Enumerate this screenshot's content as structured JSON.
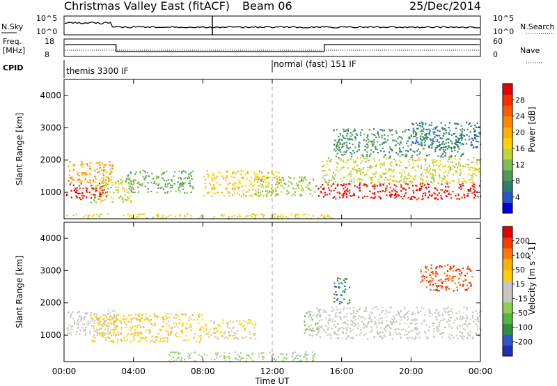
{
  "header": {
    "site": "Christmas Valley East (fitACF)",
    "beam": "Beam 06",
    "date": "25/Dec/2014"
  },
  "top_panels": {
    "nsky_label": "N.Sky",
    "nsky_ticks": [
      "10^5",
      "10^0"
    ],
    "nsearch_label": "N.Search",
    "nsearch_ticks": [
      "10^5",
      "10^0"
    ],
    "freq_label": "Freq.",
    "freq_unit": "[MHz]",
    "freq_ticks": [
      "18",
      "8"
    ],
    "nave_label": "Nave",
    "nave_ticks": [
      "60",
      "0"
    ],
    "cpid_label": "CPID",
    "cpid_modes": [
      {
        "name": "themis 3300 IF",
        "start": 0
      },
      {
        "name": "normal (fast) 151 IF",
        "start": 12
      }
    ]
  },
  "chart_data": [
    {
      "type": "heatmap",
      "title": "Power",
      "xlabel": "Time UT",
      "ylabel": "Slant Range [km]",
      "x_unit": "hours UT",
      "xlim": [
        0,
        24
      ],
      "ylim": [
        180,
        4500
      ],
      "x_ticks": [
        "00:00",
        "04:00",
        "08:00",
        "12:00",
        "16:00",
        "20:00",
        "00:00"
      ],
      "y_ticks": [
        1000,
        2000,
        3000,
        4000
      ],
      "colorbar": {
        "label": "Power [dB]",
        "ticks": [
          "4",
          "8",
          "12",
          "16",
          "20",
          "24",
          "28"
        ],
        "range": [
          0,
          30
        ],
        "colors": [
          "#0000e6",
          "#2555c8",
          "#2f7f6f",
          "#4f9b5a",
          "#7fbf4f",
          "#bcd63c",
          "#ffd200",
          "#ffb000",
          "#ff8800",
          "#ff5a00",
          "#ff2a00",
          "#e60000"
        ]
      },
      "regions": [
        {
          "t0": 0.1,
          "t1": 2.5,
          "r0": 800,
          "r1": 1300,
          "value": 28
        },
        {
          "t0": 0.2,
          "t1": 2.8,
          "r0": 1300,
          "r1": 2000,
          "value": 20
        },
        {
          "t0": 1.5,
          "t1": 4.0,
          "r0": 700,
          "r1": 1500,
          "value": 14
        },
        {
          "t0": 3.5,
          "t1": 7.5,
          "r0": 1000,
          "r1": 1700,
          "value": 10
        },
        {
          "t0": 8.0,
          "t1": 12.5,
          "r0": 900,
          "r1": 1700,
          "value": 17
        },
        {
          "t0": 11.0,
          "t1": 14.5,
          "r0": 900,
          "r1": 1500,
          "value": 12
        },
        {
          "t0": 0.0,
          "t1": 15.5,
          "r0": 200,
          "r1": 350,
          "value": 16
        },
        {
          "t0": 14.6,
          "t1": 24.0,
          "r0": 800,
          "r1": 1300,
          "value": 28
        },
        {
          "t0": 14.8,
          "t1": 24.0,
          "r0": 1300,
          "r1": 2100,
          "value": 14
        },
        {
          "t0": 15.5,
          "t1": 23.0,
          "r0": 2100,
          "r1": 3000,
          "value": 8
        },
        {
          "t0": 20.0,
          "t1": 24.0,
          "r0": 2400,
          "r1": 3200,
          "value": 6
        }
      ]
    },
    {
      "type": "heatmap",
      "title": "Velocity",
      "xlabel": "Time UT",
      "ylabel": "Slant Range [km]",
      "x_unit": "hours UT",
      "xlim": [
        0,
        24
      ],
      "ylim": [
        180,
        4500
      ],
      "x_ticks": [
        "00:00",
        "04:00",
        "08:00",
        "12:00",
        "16:00",
        "20:00",
        "00:00"
      ],
      "y_ticks": [
        1000,
        2000,
        3000,
        4000
      ],
      "colorbar": {
        "label": "Velocity [m s^-1]",
        "ticks": [
          "200",
          "100",
          "50",
          "15",
          "-15",
          "-50",
          "-100",
          "-200"
        ],
        "range": [
          -250,
          250
        ],
        "colors": [
          "#1f2fb8",
          "#2f58c8",
          "#2f8f3f",
          "#4fb83f",
          "#8fd04f",
          "#c8c8c0",
          "#c8c8c0",
          "#ffd000",
          "#ffb000",
          "#ff7a00",
          "#ff3a00",
          "#e60000"
        ]
      },
      "regions": [
        {
          "t0": 0.1,
          "t1": 3.0,
          "r0": 1000,
          "r1": 1800,
          "value": 0
        },
        {
          "t0": 1.5,
          "t1": 8.0,
          "r0": 800,
          "r1": 1700,
          "value": 60
        },
        {
          "t0": 8.0,
          "t1": 11.0,
          "r0": 900,
          "r1": 1500,
          "value": 40
        },
        {
          "t0": 6.0,
          "t1": 14.5,
          "r0": 200,
          "r1": 500,
          "value": -40
        },
        {
          "t0": 13.8,
          "t1": 14.6,
          "r0": 1000,
          "r1": 1800,
          "value": -60
        },
        {
          "t0": 14.5,
          "t1": 24.0,
          "r0": 900,
          "r1": 1900,
          "value": 0
        },
        {
          "t0": 15.5,
          "t1": 16.5,
          "r0": 2000,
          "r1": 2800,
          "value": -150
        },
        {
          "t0": 20.5,
          "t1": 23.5,
          "r0": 2400,
          "r1": 3200,
          "value": 180
        }
      ]
    }
  ]
}
